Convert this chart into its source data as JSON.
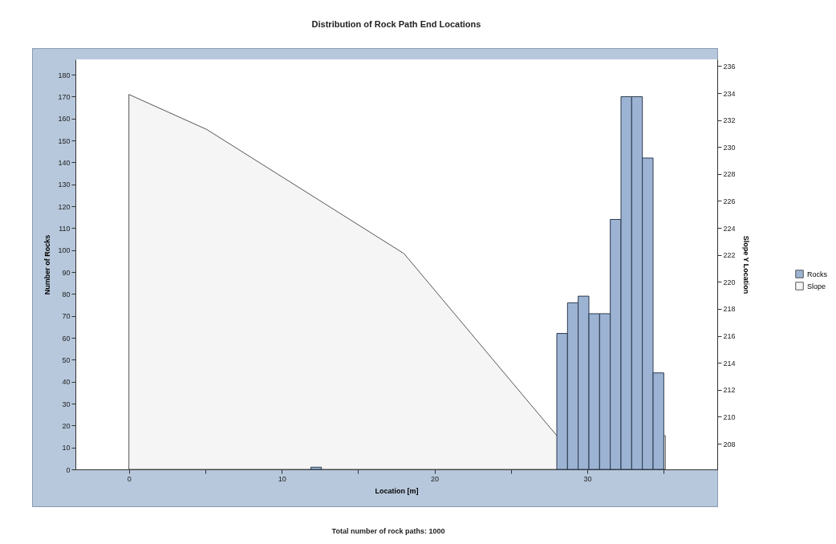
{
  "chart_data": {
    "type": "histogram",
    "title": "Distribution of Rock Path End Locations",
    "xlabel": "Location [m]",
    "ylabel": "Number of Rocks",
    "y2label": "Slope Y Location",
    "annotations": [
      "Total number of rock paths:  1000"
    ],
    "bins": [
      11.9,
      12.6,
      13.3,
      14.0,
      14.7,
      15.4,
      16.1,
      16.8,
      17.5,
      18.2,
      18.9,
      19.6,
      20.3,
      21.0,
      21.7,
      22.4,
      23.1,
      23.8,
      24.5,
      25.2,
      25.9,
      26.6,
      27.3,
      28.0,
      28.7,
      29.4,
      30.1,
      30.8,
      31.5,
      32.2,
      32.9,
      33.6,
      34.3,
      35.0
    ],
    "series": [
      {
        "name": "Rocks",
        "color": "#9db3d3",
        "values": [
          1,
          0,
          0,
          0,
          0,
          0,
          0,
          0,
          0,
          0,
          0,
          0,
          0,
          0,
          0,
          0,
          0,
          0,
          0,
          0,
          0,
          0,
          0,
          62,
          76,
          79,
          71,
          71,
          114,
          170,
          170,
          142,
          44
        ]
      },
      {
        "name": "Slope",
        "type": "area",
        "axis": "y2",
        "color": "#f5f5f5",
        "x": [
          0,
          5.1,
          18,
          28,
          35.1
        ],
        "values": [
          233.9,
          231.3,
          222.1,
          208.6,
          208.6
        ]
      }
    ],
    "xlim": [
      -3.5,
      38.5
    ],
    "xticks": [
      0,
      {
        "value": 5,
        "label": null
      },
      10,
      {
        "value": 15,
        "label": null
      },
      20,
      {
        "value": 25,
        "label": null
      },
      30,
      {
        "value": 35,
        "label": null
      }
    ],
    "ylim": [
      0,
      187
    ],
    "yticks": [
      0,
      10,
      20,
      30,
      40,
      50,
      60,
      70,
      80,
      90,
      100,
      110,
      120,
      130,
      140,
      150,
      160,
      170,
      180
    ],
    "y2lim": [
      206.1,
      236.5
    ],
    "y2ticks": [
      208,
      210,
      212,
      214,
      216,
      218,
      220,
      222,
      224,
      226,
      228,
      230,
      232,
      234,
      236
    ],
    "legend": "right",
    "grid": false
  }
}
